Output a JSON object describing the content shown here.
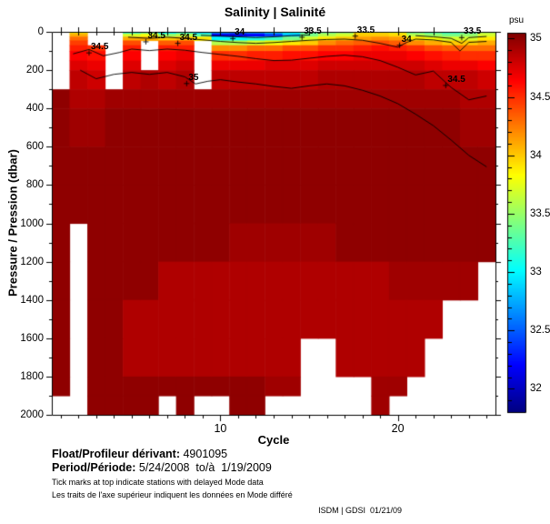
{
  "title": "Salinity | Salinité",
  "axes": {
    "x_label": "Cycle",
    "y_label": "Pressure / Pression (dbar)",
    "x_major_ticks": [
      10,
      20
    ],
    "x_minor_step": 1,
    "y_major_ticks": [
      0,
      200,
      400,
      600,
      800,
      1000,
      1200,
      1400,
      1600,
      1800,
      2000
    ],
    "y_minor_step": 100
  },
  "colorbar": {
    "unit_label": "psu",
    "tick_labels": [
      "35",
      "34.5",
      "34",
      "33.5",
      "33",
      "32.5",
      "32"
    ],
    "tick_values": [
      35,
      34.5,
      34,
      33.5,
      33,
      32.5,
      32
    ],
    "minor_step": 0.1,
    "top_color": "#8F0000",
    "bottom_color": "#00008F"
  },
  "footer": {
    "float_label": "Float/Profileur dérivant:",
    "float_id": " 4901095",
    "period_label": "Period/Période:",
    "period_value": " 5/24/2008  to/à  1/19/2009",
    "note_en": "Tick marks at top indicate stations with delayed Mode data",
    "note_fr": "Les traits de l'axe supérieur indiquent les données en Mode différé",
    "credit": "ISDM | GDSI  01/21/09"
  },
  "chart_data": {
    "type": "heatmap",
    "title": "Salinity | Salinité",
    "xlabel": "Cycle",
    "ylabel": "Pressure / Pression (dbar)",
    "x_range": [
      0.5,
      25.5
    ],
    "y_range": [
      0,
      2000
    ],
    "salinity_scale": [
      31.8,
      35.05
    ],
    "cycles": [
      1,
      2,
      3,
      4,
      5,
      6,
      7,
      8,
      9,
      10,
      11,
      12,
      13,
      14,
      15,
      16,
      17,
      18,
      19,
      20,
      21,
      22,
      23,
      24,
      25
    ],
    "depth_bins": [
      [
        0,
        10
      ],
      [
        10,
        25
      ],
      [
        25,
        45
      ],
      [
        45,
        70
      ],
      [
        70,
        100
      ],
      [
        100,
        150
      ],
      [
        150,
        200
      ],
      [
        200,
        300
      ],
      [
        300,
        400
      ],
      [
        400,
        600
      ],
      [
        600,
        800
      ],
      [
        800,
        1000
      ],
      [
        1000,
        1200
      ],
      [
        1200,
        1400
      ],
      [
        1400,
        1600
      ],
      [
        1600,
        1800
      ],
      [
        1800,
        1900
      ],
      [
        1900,
        2000
      ]
    ],
    "columns": [
      [
        null,
        null,
        null,
        null,
        null,
        null,
        null,
        null,
        35,
        35,
        35,
        35,
        35,
        35,
        35,
        35,
        35,
        null
      ],
      [
        33.9,
        34.1,
        34.3,
        34.45,
        34.55,
        34.65,
        34.75,
        34.85,
        34.9,
        34.95,
        35,
        35,
        null,
        null,
        null,
        null,
        null,
        null
      ],
      [
        null,
        null,
        null,
        null,
        34.5,
        34.6,
        34.7,
        34.8,
        34.9,
        34.95,
        35,
        35,
        35,
        35,
        35,
        35,
        35,
        35
      ],
      [
        null,
        null,
        null,
        null,
        null,
        null,
        null,
        null,
        34.95,
        35,
        35,
        35,
        35,
        35,
        35,
        35,
        35,
        35
      ],
      [
        33.2,
        33.7,
        34.1,
        34.4,
        34.55,
        34.65,
        34.75,
        34.85,
        34.95,
        35,
        35,
        35,
        35,
        35,
        34.9,
        34.9,
        35,
        35
      ],
      [
        33.4,
        33.8,
        34.1,
        null,
        null,
        null,
        null,
        34.9,
        34.95,
        35,
        35,
        35,
        35,
        35,
        34.9,
        34.9,
        35,
        35
      ],
      [
        33.0,
        33.5,
        34.0,
        34.35,
        34.55,
        34.65,
        34.75,
        34.85,
        34.95,
        35,
        35,
        35,
        35,
        34.9,
        34.9,
        34.9,
        35,
        null
      ],
      [
        33.2,
        33.6,
        34.05,
        34.4,
        34.55,
        34.7,
        34.8,
        34.9,
        34.95,
        35,
        35,
        35,
        35,
        34.9,
        34.9,
        34.9,
        35,
        35
      ],
      [
        32.9,
        33.3,
        33.9,
        null,
        null,
        null,
        null,
        null,
        34.95,
        35,
        35,
        35,
        35,
        34.9,
        34.9,
        34.9,
        35,
        null
      ],
      [
        32.6,
        32.15,
        33.0,
        33.6,
        34.2,
        34.5,
        34.7,
        34.85,
        34.95,
        35,
        35,
        35,
        35,
        34.9,
        34.9,
        34.9,
        35,
        null
      ],
      [
        32.5,
        32.1,
        33.0,
        33.6,
        34.2,
        34.5,
        34.7,
        34.85,
        34.95,
        35,
        35,
        35,
        34.95,
        34.9,
        34.9,
        34.9,
        35,
        35
      ],
      [
        32.6,
        32.2,
        33.1,
        33.7,
        34.3,
        34.55,
        34.7,
        34.85,
        34.95,
        35,
        35,
        35,
        34.95,
        34.9,
        34.9,
        34.9,
        35,
        35
      ],
      [
        32.8,
        32.4,
        33.2,
        33.8,
        34.3,
        34.55,
        34.75,
        34.85,
        34.95,
        35,
        35,
        35,
        34.95,
        34.9,
        34.9,
        34.9,
        34.95,
        null
      ],
      [
        33.0,
        32.8,
        33.4,
        33.9,
        34.4,
        34.6,
        34.75,
        34.85,
        34.95,
        35,
        35,
        35,
        34.95,
        34.9,
        34.9,
        34.9,
        34.95,
        null
      ],
      [
        33.3,
        33.4,
        33.7,
        34.0,
        34.4,
        34.6,
        34.75,
        34.85,
        34.95,
        35,
        35,
        35,
        34.95,
        34.9,
        34.9,
        null,
        null,
        null
      ],
      [
        33.4,
        33.6,
        33.9,
        34.2,
        34.5,
        34.65,
        34.8,
        34.9,
        34.95,
        35,
        35,
        35,
        34.95,
        34.9,
        34.9,
        null,
        null,
        null
      ],
      [
        33.5,
        33.7,
        34.0,
        34.3,
        34.5,
        34.65,
        34.8,
        34.9,
        34.95,
        35,
        35,
        35,
        35,
        34.9,
        34.9,
        34.9,
        null,
        null
      ],
      [
        33.9,
        34.0,
        34.15,
        34.35,
        34.55,
        34.7,
        34.8,
        34.9,
        34.95,
        35,
        35,
        35,
        35,
        34.9,
        34.9,
        34.9,
        null,
        null
      ],
      [
        33.9,
        34.0,
        34.2,
        34.4,
        34.6,
        34.7,
        34.8,
        34.9,
        34.95,
        35,
        35,
        35,
        35,
        34.9,
        34.9,
        34.9,
        34.95,
        34.95
      ],
      [
        33.8,
        33.95,
        34.15,
        34.35,
        34.55,
        34.7,
        34.8,
        34.9,
        34.95,
        35,
        35,
        35,
        35,
        34.95,
        34.9,
        34.9,
        34.95,
        null
      ],
      [
        33.4,
        33.6,
        33.9,
        34.2,
        34.5,
        34.65,
        34.8,
        34.9,
        34.95,
        35,
        35,
        35,
        35,
        34.95,
        34.9,
        34.9,
        null,
        null
      ],
      [
        33.3,
        33.5,
        33.8,
        34.1,
        34.4,
        34.6,
        34.75,
        34.85,
        34.95,
        35,
        35,
        35,
        35,
        34.95,
        34.9,
        null,
        null,
        null
      ],
      [
        33.2,
        33.4,
        33.7,
        34.0,
        34.35,
        34.55,
        34.7,
        34.85,
        34.95,
        35,
        35,
        35,
        35,
        34.95,
        null,
        null,
        null,
        null
      ],
      [
        33.3,
        33.5,
        33.7,
        34.0,
        34.3,
        34.5,
        34.7,
        34.85,
        34.9,
        34.95,
        35,
        35,
        35,
        34.95,
        null,
        null,
        null,
        null
      ],
      [
        33.6,
        33.7,
        33.9,
        34.1,
        34.3,
        34.5,
        34.65,
        34.8,
        34.9,
        34.95,
        35,
        35,
        35,
        null,
        null,
        null,
        null,
        null
      ]
    ],
    "contour_labels": [
      {
        "text": "34.5",
        "cycle": 2.6,
        "depth": 110
      },
      {
        "text": "34.5",
        "cycle": 5.8,
        "depth": 52
      },
      {
        "text": "34.5",
        "cycle": 7.6,
        "depth": 60
      },
      {
        "text": "35",
        "cycle": 8.1,
        "depth": 270
      },
      {
        "text": "34",
        "cycle": 10.7,
        "depth": 35
      },
      {
        "text": "33.5",
        "cycle": 14.6,
        "depth": 28
      },
      {
        "text": "33.5",
        "cycle": 17.6,
        "depth": 22
      },
      {
        "text": "34",
        "cycle": 20.1,
        "depth": 70
      },
      {
        "text": "34.5",
        "cycle": 22.7,
        "depth": 280
      },
      {
        "text": "33.5",
        "cycle": 23.6,
        "depth": 30
      }
    ],
    "contour_lines": [
      {
        "level": 33.5,
        "points": [
          [
            8.9,
            18
          ],
          [
            10,
            22
          ],
          [
            11,
            26
          ],
          [
            12,
            30
          ],
          [
            13,
            26
          ],
          [
            14,
            20
          ],
          [
            15,
            16
          ]
        ]
      },
      {
        "level": 33.5,
        "points": [
          [
            21,
            20
          ],
          [
            22,
            26
          ],
          [
            23,
            34
          ],
          [
            23.6,
            60
          ],
          [
            24,
            30
          ],
          [
            25,
            24
          ]
        ]
      },
      {
        "level": 34,
        "points": [
          [
            4.8,
            28
          ],
          [
            6,
            34
          ],
          [
            7,
            28
          ],
          [
            8,
            34
          ],
          [
            9,
            42
          ],
          [
            10,
            50
          ],
          [
            11,
            56
          ],
          [
            12,
            60
          ],
          [
            13,
            56
          ],
          [
            14,
            50
          ],
          [
            15,
            44
          ],
          [
            16,
            40
          ],
          [
            17,
            38
          ],
          [
            18,
            44
          ],
          [
            19,
            60
          ],
          [
            20,
            80
          ],
          [
            20.5,
            55
          ],
          [
            21,
            38
          ],
          [
            22,
            42
          ],
          [
            23,
            55
          ],
          [
            23.5,
            100
          ],
          [
            24,
            55
          ],
          [
            25,
            50
          ]
        ]
      },
      {
        "level": 34.5,
        "points": [
          [
            1.7,
            115
          ],
          [
            2.6,
            92
          ],
          [
            3.4,
            125
          ],
          [
            4.3,
            108
          ],
          [
            5,
            90
          ],
          [
            6,
            98
          ],
          [
            7,
            90
          ],
          [
            8,
            96
          ],
          [
            9,
            108
          ],
          [
            10,
            118
          ],
          [
            11,
            128
          ],
          [
            12,
            140
          ],
          [
            13,
            150
          ],
          [
            14,
            148
          ],
          [
            15,
            138
          ],
          [
            16,
            128
          ],
          [
            17,
            122
          ],
          [
            18,
            130
          ],
          [
            19,
            150
          ],
          [
            20,
            185
          ],
          [
            21,
            225
          ],
          [
            22,
            205
          ],
          [
            23,
            290
          ],
          [
            24,
            355
          ],
          [
            25,
            335
          ]
        ]
      },
      {
        "level": 35,
        "points": [
          [
            2.1,
            200
          ],
          [
            3,
            245
          ],
          [
            4,
            222
          ],
          [
            5,
            212
          ],
          [
            6,
            222
          ],
          [
            7,
            212
          ],
          [
            8,
            235
          ],
          [
            8.6,
            272
          ],
          [
            9.3,
            258
          ],
          [
            10,
            250
          ],
          [
            11,
            262
          ],
          [
            12,
            272
          ],
          [
            13,
            285
          ],
          [
            14,
            295
          ],
          [
            15,
            282
          ],
          [
            16,
            272
          ],
          [
            17,
            282
          ],
          [
            18,
            305
          ],
          [
            19,
            335
          ],
          [
            20,
            375
          ],
          [
            21,
            430
          ],
          [
            22,
            490
          ],
          [
            23,
            565
          ],
          [
            24,
            645
          ],
          [
            25,
            705
          ]
        ]
      }
    ],
    "delayed_mode_ticks": [
      1,
      2,
      3,
      4,
      5,
      6,
      7,
      8,
      10,
      13,
      15,
      16,
      20,
      22
    ]
  }
}
